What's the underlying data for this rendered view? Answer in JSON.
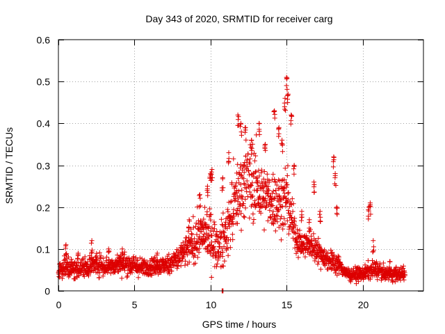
{
  "chart_data": {
    "type": "scatter",
    "title": "Day 343 of 2020, SRMTID for receiver carg",
    "xlabel": "GPS time / hours",
    "ylabel": "SRMTID / TECUs",
    "xlim": [
      0,
      24
    ],
    "ylim": [
      0,
      0.6
    ],
    "xticks": [
      0,
      5,
      10,
      15,
      20
    ],
    "yticks": [
      0,
      0.1,
      0.2,
      0.3,
      0.4,
      0.5,
      0.6
    ],
    "xtick_labels": [
      "0",
      "5",
      "10",
      "15",
      "20"
    ],
    "ytick_labels": [
      "0",
      "0.1",
      "0.2",
      "0.3",
      "0.4",
      "0.5",
      "0.6"
    ],
    "grid": true,
    "marker": "plus",
    "colors": {
      "series": "#dd0000",
      "grid": "#a0a0a0",
      "axis": "#000000"
    },
    "series": [
      {
        "name": "SRMTID",
        "envelope": {
          "x": [
            0,
            0.5,
            1,
            1.5,
            2,
            2.5,
            3,
            3.5,
            4,
            4.5,
            5,
            5.5,
            6,
            6.5,
            7,
            7.5,
            8,
            8.5,
            9,
            9.5,
            10,
            10.5,
            11,
            11.5,
            12,
            12.5,
            13,
            13.5,
            14,
            14.5,
            15,
            15.3,
            15.6,
            16,
            16.5,
            17,
            17.5,
            18,
            18.5,
            19,
            19.5,
            20,
            20.5,
            21,
            21.5,
            22,
            22.8
          ],
          "center": [
            0.05,
            0.06,
            0.05,
            0.055,
            0.06,
            0.065,
            0.06,
            0.06,
            0.065,
            0.065,
            0.06,
            0.055,
            0.06,
            0.06,
            0.06,
            0.07,
            0.08,
            0.1,
            0.12,
            0.14,
            0.13,
            0.1,
            0.13,
            0.2,
            0.25,
            0.27,
            0.25,
            0.22,
            0.22,
            0.21,
            0.22,
            0.18,
            0.13,
            0.11,
            0.11,
            0.1,
            0.08,
            0.07,
            0.06,
            0.04,
            0.04,
            0.04,
            0.05,
            0.05,
            0.04,
            0.04,
            0.04
          ],
          "spread": [
            0.02,
            0.03,
            0.025,
            0.02,
            0.025,
            0.025,
            0.025,
            0.02,
            0.025,
            0.025,
            0.025,
            0.02,
            0.02,
            0.02,
            0.02,
            0.025,
            0.03,
            0.04,
            0.05,
            0.05,
            0.06,
            0.05,
            0.06,
            0.08,
            0.08,
            0.09,
            0.09,
            0.07,
            0.07,
            0.07,
            0.08,
            0.06,
            0.04,
            0.03,
            0.03,
            0.03,
            0.025,
            0.025,
            0.02,
            0.015,
            0.015,
            0.015,
            0.02,
            0.02,
            0.015,
            0.015,
            0.015
          ]
        },
        "highlights": [
          [
            0.5,
            0.11
          ],
          [
            1.3,
            0.09
          ],
          [
            2.2,
            0.12
          ],
          [
            3.3,
            0.1
          ],
          [
            4.2,
            0.1
          ],
          [
            6.5,
            0.09
          ],
          [
            8.6,
            0.17
          ],
          [
            9.3,
            0.23
          ],
          [
            9.8,
            0.25
          ],
          [
            10.0,
            0.28
          ],
          [
            10.1,
            0.29
          ],
          [
            10.8,
            0.27
          ],
          [
            11.2,
            0.33
          ],
          [
            11.8,
            0.42
          ],
          [
            12.0,
            0.4
          ],
          [
            12.3,
            0.39
          ],
          [
            12.7,
            0.36
          ],
          [
            13.2,
            0.4
          ],
          [
            13.6,
            0.35
          ],
          [
            14.2,
            0.43
          ],
          [
            14.5,
            0.39
          ],
          [
            14.7,
            0.36
          ],
          [
            14.9,
            0.46
          ],
          [
            15.0,
            0.51
          ],
          [
            15.1,
            0.47
          ],
          [
            15.3,
            0.42
          ],
          [
            15.5,
            0.3
          ],
          [
            16.0,
            0.19
          ],
          [
            16.5,
            0.17
          ],
          [
            16.8,
            0.26
          ],
          [
            17.2,
            0.19
          ],
          [
            18.1,
            0.32
          ],
          [
            18.2,
            0.28
          ],
          [
            18.3,
            0.2
          ],
          [
            20.4,
            0.2
          ],
          [
            20.5,
            0.21
          ],
          [
            20.7,
            0.12
          ],
          [
            21.8,
            0.07
          ],
          [
            10.8,
            0.0
          ]
        ]
      }
    ]
  }
}
